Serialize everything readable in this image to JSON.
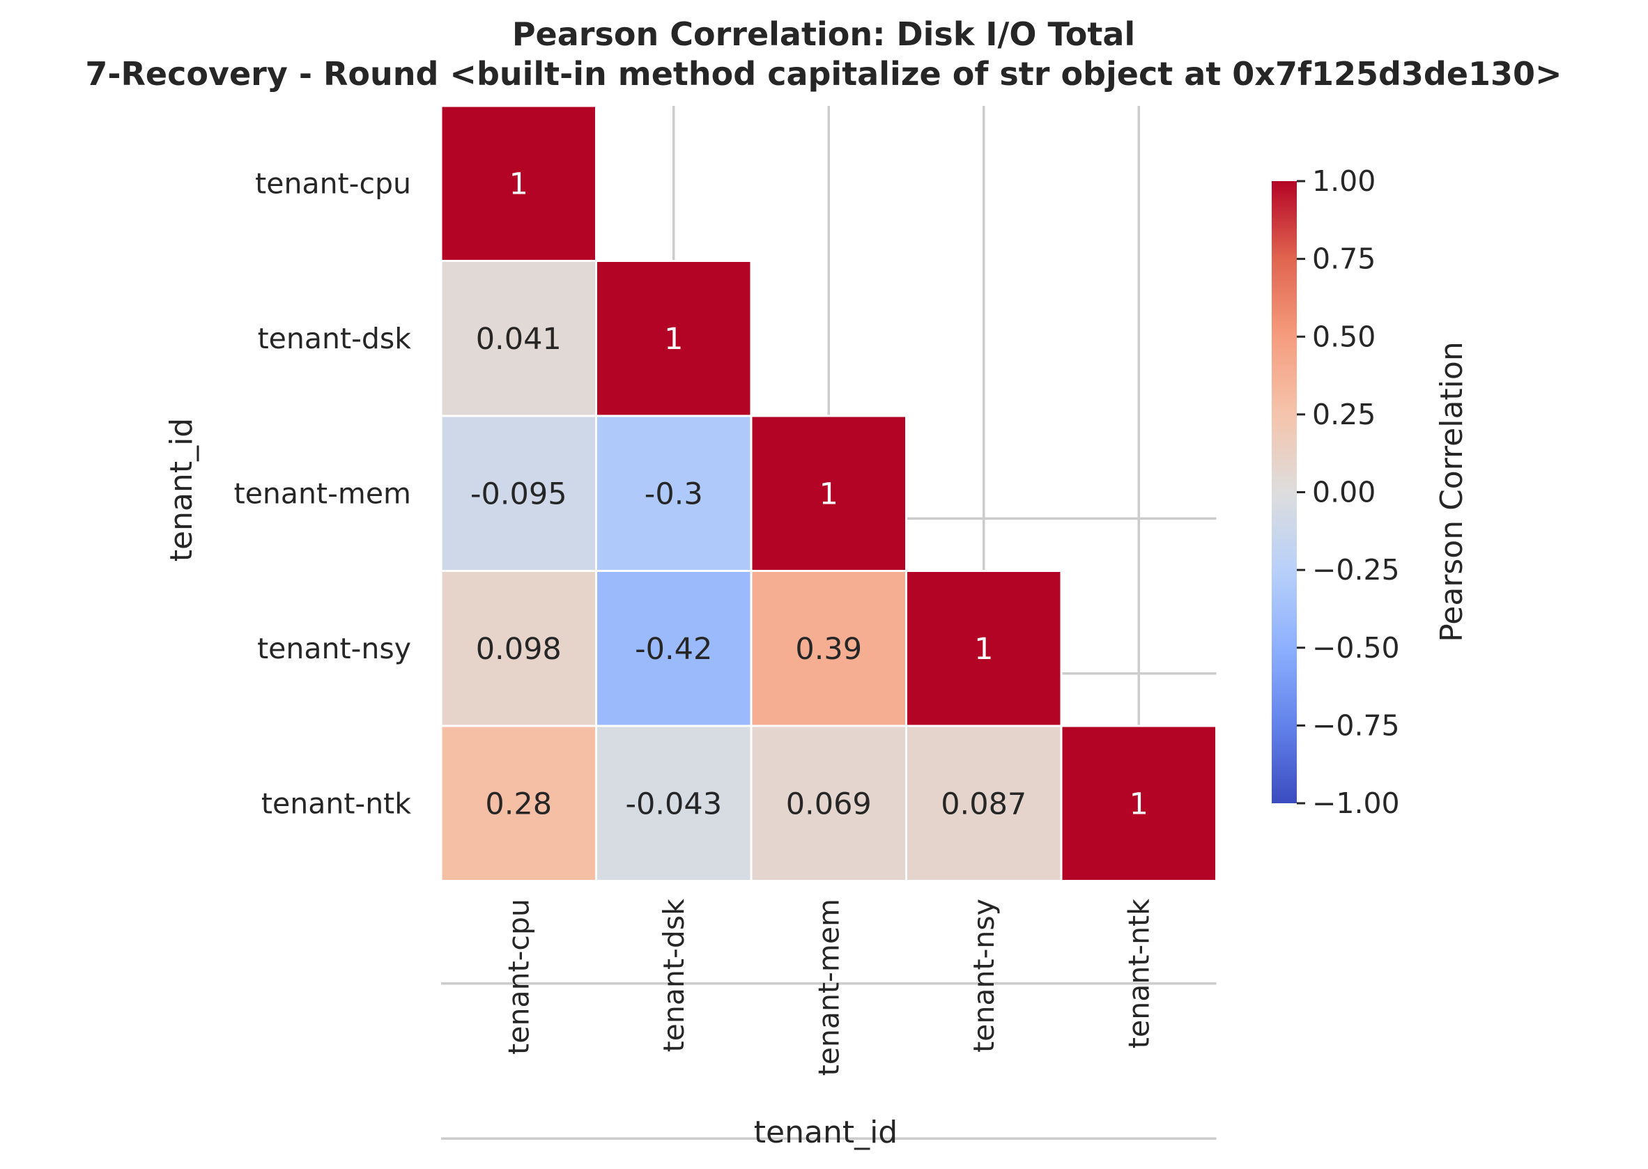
{
  "chart_data": {
    "type": "heatmap",
    "title": "Pearson Correlation: Disk I/O Total",
    "subtitle": "7-Recovery - Round <built-in method capitalize of str object at 0x7f125d3de130>",
    "xlabel": "tenant_id",
    "ylabel": "tenant_id",
    "rows": [
      "tenant-cpu",
      "tenant-dsk",
      "tenant-mem",
      "tenant-nsy",
      "tenant-ntk"
    ],
    "columns": [
      "tenant-cpu",
      "tenant-dsk",
      "tenant-mem",
      "tenant-nsy",
      "tenant-ntk"
    ],
    "mask": "upper-triangle",
    "cells": [
      {
        "row": 0,
        "col": 0,
        "value": 1,
        "label": "1"
      },
      {
        "row": 1,
        "col": 0,
        "value": 0.041,
        "label": "0.041"
      },
      {
        "row": 1,
        "col": 1,
        "value": 1,
        "label": "1"
      },
      {
        "row": 2,
        "col": 0,
        "value": -0.095,
        "label": "-0.095"
      },
      {
        "row": 2,
        "col": 1,
        "value": -0.3,
        "label": "-0.3"
      },
      {
        "row": 2,
        "col": 2,
        "value": 1,
        "label": "1"
      },
      {
        "row": 3,
        "col": 0,
        "value": 0.098,
        "label": "0.098"
      },
      {
        "row": 3,
        "col": 1,
        "value": -0.42,
        "label": "-0.42"
      },
      {
        "row": 3,
        "col": 2,
        "value": 0.39,
        "label": "0.39"
      },
      {
        "row": 3,
        "col": 3,
        "value": 1,
        "label": "1"
      },
      {
        "row": 4,
        "col": 0,
        "value": 0.28,
        "label": "0.28"
      },
      {
        "row": 4,
        "col": 1,
        "value": -0.043,
        "label": "-0.043"
      },
      {
        "row": 4,
        "col": 2,
        "value": 0.069,
        "label": "0.069"
      },
      {
        "row": 4,
        "col": 3,
        "value": 0.087,
        "label": "0.087"
      },
      {
        "row": 4,
        "col": 4,
        "value": 1,
        "label": "1"
      }
    ],
    "colorbar": {
      "label": "Pearson Correlation",
      "range": [
        -1,
        1
      ],
      "ticks": [
        1,
        0.75,
        0.5,
        0.25,
        0,
        -0.25,
        -0.5,
        -0.75,
        -1
      ],
      "tick_labels": [
        "1.00",
        "0.75",
        "0.50",
        "0.25",
        "0.00",
        "−0.25",
        "−0.50",
        "−0.75",
        "−1.00"
      ],
      "colormap": "coolwarm",
      "colormap_stops": [
        [
          0.0,
          "#3b4cc0"
        ],
        [
          0.125,
          "#6282ea"
        ],
        [
          0.25,
          "#8db0fe"
        ],
        [
          0.375,
          "#b8d0f9"
        ],
        [
          0.5,
          "#dddddd"
        ],
        [
          0.625,
          "#f5c4ac"
        ],
        [
          0.75,
          "#f59d7e"
        ],
        [
          0.875,
          "#e0654f"
        ],
        [
          1.0,
          "#b40426"
        ]
      ]
    },
    "grid": true,
    "grid_color": "#cccccc"
  }
}
